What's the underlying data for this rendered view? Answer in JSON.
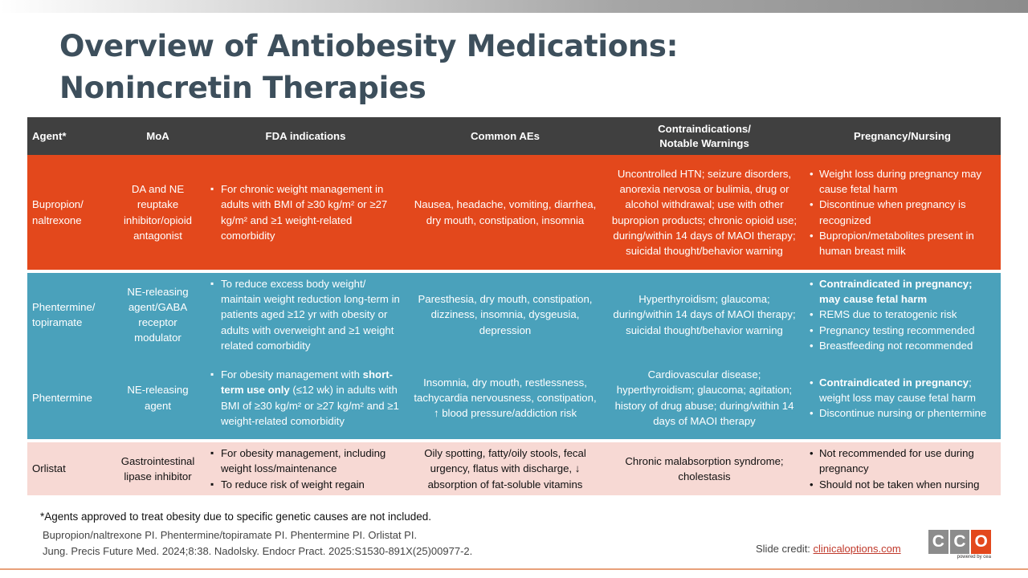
{
  "title": {
    "line1": "Overview of Antiobesity Medications:",
    "line2": "Nonincretin Therapies"
  },
  "table": {
    "headers": {
      "agent": "Agent*",
      "moa": "MoA",
      "fda": "FDA indications",
      "aes": "Common AEs",
      "contra_line1": "Contraindications/",
      "contra_line2": "Notable Warnings",
      "preg": "Pregnancy/Nursing"
    },
    "rows": [
      {
        "agent_line1": "Bupropion/",
        "agent_line2": "naltrexone",
        "moa": "DA and NE reuptake inhibitor/opioid antagonist",
        "fda": [
          "For chronic weight management in adults with BMI of ≥30 kg/m² or ≥27 kg/m² and ≥1 weight-related comorbidity"
        ],
        "aes": "Nausea, headache, vomiting, diarrhea, dry mouth, constipation, insomnia",
        "contra": "Uncontrolled HTN; seizure disorders, anorexia nervosa or bulimia, drug or alcohol withdrawal; use with other bupropion products; chronic opioid use; during/within 14 days of MAOI therapy; suicidal thought/behavior warning",
        "preg": [
          "Weight loss during pregnancy may cause fetal harm",
          "Discontinue when pregnancy is recognized",
          "Bupropion/metabolites present in human breast milk"
        ]
      },
      {
        "agent_line1": "Phentermine/",
        "agent_line2": "topiramate",
        "moa": "NE-releasing agent/GABA receptor modulator",
        "fda": [
          "To reduce excess body weight/ maintain weight reduction long-term in patients aged ≥12 yr with obesity or adults with overweight and ≥1 weight related comorbidity"
        ],
        "aes": "Paresthesia, dry mouth, constipation, dizziness, insomnia, dysgeusia, depression",
        "contra": "Hyperthyroidism; glaucoma; during/within 14 days of MAOI therapy; suicidal thought/behavior warning",
        "preg_bold": "Contraindicated in pregnancy; may cause fetal harm",
        "preg": [
          "REMS due to teratogenic risk",
          "Pregnancy testing recommended",
          "Breastfeeding not recommended"
        ]
      },
      {
        "agent": "Phentermine",
        "moa": "NE-releasing agent",
        "fda_pre": "For obesity management with ",
        "fda_bold": "short-term use only",
        "fda_post": " (≤12 wk) in adults with BMI of ≥30 kg/m² or ≥27 kg/m² and ≥1 weight-related comorbidity",
        "aes": "Insomnia, dry mouth, restlessness, tachycardia nervousness, constipation, ↑ blood pressure/addiction risk",
        "contra": "Cardiovascular disease; hyperthyroidism; glaucoma; agitation; history of drug abuse; during/within 14 days of MAOI therapy",
        "preg_bold": "Contraindicated in pregnancy",
        "preg_rest": "; weight loss may cause fetal harm",
        "preg": [
          "Discontinue nursing or phentermine"
        ]
      },
      {
        "agent": "Orlistat",
        "moa": "Gastrointestinal lipase inhibitor",
        "fda": [
          "For obesity management, including weight loss/maintenance",
          "To reduce risk of weight regain"
        ],
        "aes": "Oily spotting, fatty/oily stools, fecal urgency, flatus with discharge, ↓ absorption of fat-soluble vitamins",
        "contra": "Chronic malabsorption syndrome; cholestasis",
        "preg": [
          "Not recommended for use during pregnancy",
          "Should not be taken when nursing"
        ]
      }
    ]
  },
  "footnote": "*Agents approved to treat obesity due to specific genetic causes are not included.",
  "references": {
    "line1": "Bupropion/naltrexone PI. Phentermine/topiramate PI. Phentermine PI. Orlistat PI.",
    "line2": "Jung. Precis Future Med. 2024;8:38. Nadolsky. Endocr Pract. 2025:S1530-891X(25)00977-2."
  },
  "credit": {
    "label": "Slide credit: ",
    "link": "clinicaloptions.com"
  },
  "logo": {
    "letters": [
      "C",
      "C",
      "O"
    ],
    "tagline": "powered by cea"
  },
  "colors": {
    "title": "#3d4f5c",
    "header_bg": "#404040",
    "orange_row": "#e3481c",
    "blue_row": "#4aa1bb",
    "pink_row": "#f7d9d4"
  }
}
